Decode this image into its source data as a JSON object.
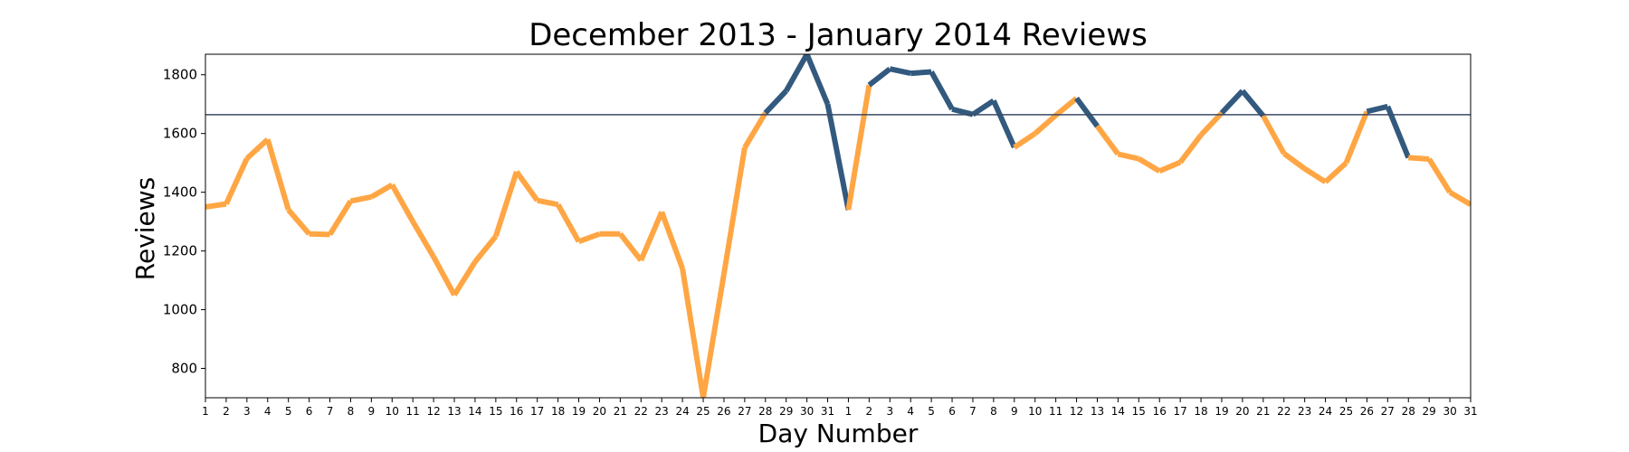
{
  "chart_data": {
    "type": "line",
    "title": "December 2013 - January 2014 Reviews",
    "xlabel": "Day Number",
    "ylabel": "Reviews",
    "ylim": [
      700,
      1870
    ],
    "yticks": [
      800,
      1000,
      1200,
      1400,
      1600,
      1800
    ],
    "grid": false,
    "legend": "none",
    "x": [
      "1",
      "2",
      "3",
      "4",
      "5",
      "6",
      "7",
      "8",
      "9",
      "10",
      "11",
      "12",
      "13",
      "14",
      "15",
      "16",
      "17",
      "18",
      "19",
      "20",
      "21",
      "22",
      "23",
      "24",
      "25",
      "26",
      "27",
      "28",
      "29",
      "30",
      "31",
      "1",
      "2",
      "3",
      "4",
      "5",
      "6",
      "7",
      "8",
      "9",
      "10",
      "11",
      "12",
      "13",
      "14",
      "15",
      "16",
      "17",
      "18",
      "19",
      "20",
      "21",
      "22",
      "23",
      "24",
      "25",
      "26",
      "27",
      "28",
      "29",
      "30",
      "31"
    ],
    "values": [
      1350,
      1360,
      1515,
      1580,
      1340,
      1258,
      1256,
      1370,
      1384,
      1425,
      1300,
      1180,
      1050,
      1163,
      1250,
      1470,
      1372,
      1358,
      1232,
      1258,
      1258,
      1168,
      1333,
      1140,
      700,
      1122,
      1552,
      1670,
      1745,
      1870,
      1700,
      1340,
      1765,
      1820,
      1805,
      1810,
      1683,
      1665,
      1712,
      1553,
      1600,
      1662,
      1720,
      1625,
      1530,
      1514,
      1472,
      1502,
      1595,
      1670,
      1745,
      1660,
      1532,
      1480,
      1435,
      1500,
      1675,
      1692,
      1518,
      1513,
      1400,
      1358
    ],
    "reference_line": 1664,
    "colors": {
      "below": "#ffa644",
      "above": "#335a7e",
      "reference": "#3d4a66"
    }
  }
}
